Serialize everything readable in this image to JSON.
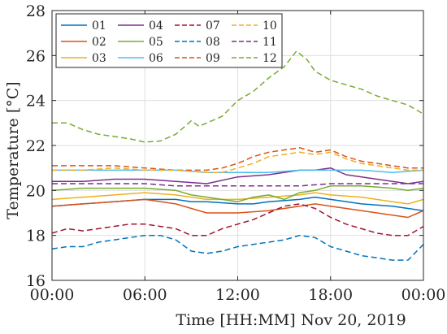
{
  "chart_data": {
    "type": "line",
    "title": "",
    "xlabel": "Time [HH:MM]",
    "date_label": "Nov 20, 2019",
    "ylabel": "Temperature [°C]",
    "xlim": [
      0,
      24
    ],
    "ylim": [
      16,
      28
    ],
    "x_ticks": [
      0,
      6,
      12,
      18,
      24
    ],
    "x_tick_labels": [
      "00:00",
      "06:00",
      "12:00",
      "18:00",
      "00:00"
    ],
    "y_ticks": [
      16,
      18,
      20,
      22,
      24,
      26,
      28
    ],
    "y_tick_labels": [
      "16",
      "18",
      "20",
      "22",
      "24",
      "26",
      "28"
    ],
    "grid": true,
    "legend_position": "top-left",
    "series": [
      {
        "name": "01",
        "color": "#0072BD",
        "dash": "solid",
        "x": [
          0,
          2,
          4,
          6,
          8,
          9,
          10,
          12,
          13,
          14,
          16,
          17,
          18,
          20,
          22,
          23,
          24
        ],
        "y": [
          19.3,
          19.4,
          19.5,
          19.6,
          19.6,
          19.5,
          19.5,
          19.4,
          19.4,
          19.5,
          19.6,
          19.7,
          19.6,
          19.4,
          19.3,
          19.2,
          19.1
        ]
      },
      {
        "name": "02",
        "color": "#D95319",
        "dash": "solid",
        "x": [
          0,
          2,
          4,
          6,
          8,
          9,
          10,
          12,
          14,
          16,
          17,
          18,
          20,
          22,
          23,
          24
        ],
        "y": [
          19.3,
          19.4,
          19.5,
          19.6,
          19.4,
          19.2,
          19.0,
          19.0,
          19.1,
          19.3,
          19.4,
          19.3,
          19.1,
          18.9,
          18.8,
          19.1
        ]
      },
      {
        "name": "03",
        "color": "#EDB120",
        "dash": "solid",
        "x": [
          0,
          2,
          4,
          6,
          8,
          10,
          12,
          14,
          16,
          17,
          18,
          20,
          22,
          23,
          24
        ],
        "y": [
          19.6,
          19.7,
          19.8,
          19.9,
          19.8,
          19.6,
          19.6,
          19.7,
          19.8,
          19.9,
          19.8,
          19.7,
          19.5,
          19.4,
          19.6
        ]
      },
      {
        "name": "04",
        "color": "#7E2F8E",
        "dash": "solid",
        "x": [
          0,
          2,
          4,
          6,
          8,
          10,
          12,
          14,
          16,
          17,
          18,
          19,
          20,
          22,
          23,
          24
        ],
        "y": [
          20.4,
          20.4,
          20.5,
          20.5,
          20.4,
          20.3,
          20.6,
          20.7,
          20.9,
          20.9,
          21.0,
          20.7,
          20.6,
          20.4,
          20.3,
          20.4
        ]
      },
      {
        "name": "05",
        "color": "#77AC30",
        "dash": "solid",
        "x": [
          0,
          2,
          4,
          6,
          8,
          9,
          10,
          12,
          13,
          14,
          15,
          16,
          17,
          18,
          20,
          22,
          23,
          24
        ],
        "y": [
          20.0,
          20.1,
          20.1,
          20.1,
          20.0,
          19.8,
          19.7,
          19.5,
          19.7,
          19.8,
          19.6,
          19.9,
          20.0,
          20.2,
          20.2,
          20.1,
          20.0,
          20.1
        ]
      },
      {
        "name": "06",
        "color": "#4DBEEE",
        "dash": "solid",
        "x": [
          0,
          2,
          4,
          6,
          8,
          10,
          12,
          14,
          16,
          18,
          20,
          22,
          24
        ],
        "y": [
          20.9,
          20.9,
          20.9,
          20.9,
          20.9,
          20.8,
          20.8,
          20.8,
          20.9,
          20.9,
          20.9,
          20.8,
          20.9
        ]
      },
      {
        "name": "07",
        "color": "#A2142F",
        "dash": "dashed",
        "x": [
          0,
          1,
          2,
          3,
          4,
          5,
          6,
          7,
          8,
          9,
          10,
          11,
          12,
          13,
          14,
          15,
          16,
          17,
          18,
          19,
          20,
          21,
          22,
          23,
          24
        ],
        "y": [
          18.1,
          18.3,
          18.2,
          18.3,
          18.4,
          18.5,
          18.5,
          18.4,
          18.3,
          18.0,
          18.0,
          18.3,
          18.5,
          18.7,
          19.0,
          19.3,
          19.4,
          19.2,
          18.8,
          18.5,
          18.3,
          18.1,
          18.0,
          18.0,
          18.4
        ]
      },
      {
        "name": "08",
        "color": "#0072BD",
        "dash": "dashed",
        "x": [
          0,
          1,
          2,
          3,
          4,
          5,
          6,
          7,
          8,
          9,
          10,
          11,
          12,
          13,
          14,
          15,
          16,
          17,
          18,
          19,
          20,
          21,
          22,
          23,
          24
        ],
        "y": [
          17.4,
          17.5,
          17.5,
          17.7,
          17.8,
          17.9,
          18.0,
          18.0,
          17.8,
          17.3,
          17.2,
          17.3,
          17.5,
          17.6,
          17.7,
          17.8,
          18.0,
          17.9,
          17.5,
          17.3,
          17.1,
          17.0,
          16.9,
          16.9,
          17.6
        ]
      },
      {
        "name": "09",
        "color": "#D95319",
        "dash": "dashed",
        "x": [
          0,
          2,
          4,
          6,
          8,
          10,
          11,
          12,
          13,
          14,
          15,
          16,
          17,
          18,
          19,
          20,
          22,
          23,
          24
        ],
        "y": [
          21.1,
          21.1,
          21.1,
          21.0,
          20.9,
          20.9,
          21.0,
          21.2,
          21.5,
          21.7,
          21.8,
          21.9,
          21.7,
          21.8,
          21.5,
          21.3,
          21.1,
          21.0,
          21.0
        ]
      },
      {
        "name": "10",
        "color": "#EDB120",
        "dash": "dashed",
        "x": [
          0,
          2,
          4,
          6,
          8,
          10,
          11,
          12,
          13,
          14,
          15,
          16,
          17,
          18,
          19,
          20,
          22,
          23,
          24
        ],
        "y": [
          20.9,
          20.9,
          21.0,
          20.9,
          20.9,
          20.8,
          20.8,
          21.0,
          21.2,
          21.5,
          21.6,
          21.7,
          21.6,
          21.7,
          21.4,
          21.2,
          21.0,
          20.9,
          20.9
        ]
      },
      {
        "name": "11",
        "color": "#7E2F8E",
        "dash": "dashed",
        "x": [
          0,
          2,
          4,
          6,
          8,
          10,
          12,
          14,
          16,
          18,
          20,
          22,
          24
        ],
        "y": [
          20.3,
          20.3,
          20.3,
          20.3,
          20.2,
          20.2,
          20.2,
          20.2,
          20.2,
          20.3,
          20.3,
          20.3,
          20.3
        ]
      },
      {
        "name": "12",
        "color": "#77AC30",
        "dash": "dashed",
        "x": [
          0,
          1,
          2,
          3,
          4,
          5,
          6,
          7,
          8,
          8.5,
          9,
          9.5,
          10,
          11,
          12,
          13,
          14,
          15,
          15.8,
          16.5,
          17,
          18,
          19,
          20,
          21,
          22,
          23,
          24
        ],
        "y": [
          23.0,
          23.0,
          22.7,
          22.5,
          22.4,
          22.3,
          22.15,
          22.2,
          22.5,
          22.8,
          23.1,
          22.85,
          23.0,
          23.3,
          24.0,
          24.4,
          25.0,
          25.5,
          26.2,
          25.8,
          25.3,
          24.9,
          24.7,
          24.5,
          24.2,
          24.0,
          23.8,
          23.4
        ]
      }
    ]
  }
}
